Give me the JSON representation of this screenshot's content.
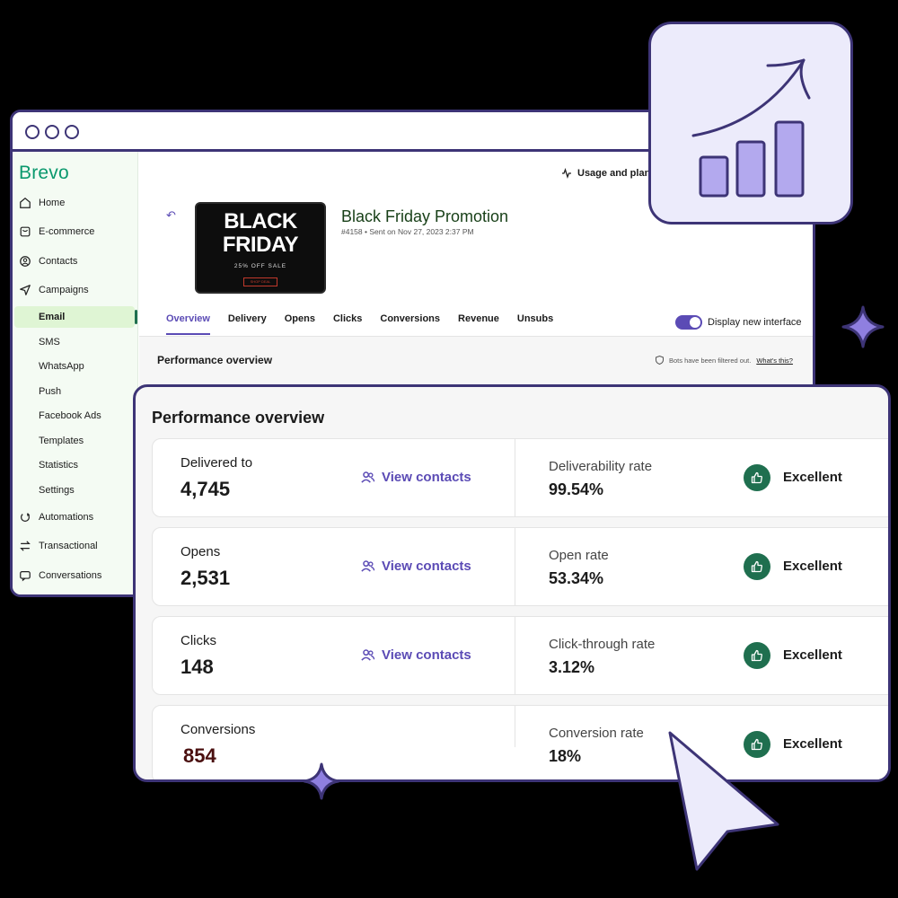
{
  "window": {
    "brand": "Brevo",
    "usage_label": "Usage and plan"
  },
  "sidebar": {
    "items": [
      {
        "label": "Home",
        "icon": "home-icon"
      },
      {
        "label": "E-commerce",
        "icon": "bag-icon"
      },
      {
        "label": "Contacts",
        "icon": "contact-icon"
      },
      {
        "label": "Campaigns",
        "icon": "send-icon"
      }
    ],
    "campaign_sub": [
      {
        "label": "Email",
        "active": true
      },
      {
        "label": "SMS"
      },
      {
        "label": "WhatsApp"
      },
      {
        "label": "Push"
      },
      {
        "label": "Facebook Ads"
      },
      {
        "label": "Templates"
      },
      {
        "label": "Statistics"
      },
      {
        "label": "Settings"
      }
    ],
    "bottom_items": [
      {
        "label": "Automations",
        "icon": "automation-icon"
      },
      {
        "label": "Transactional",
        "icon": "swap-icon"
      },
      {
        "label": "Conversations",
        "icon": "chat-icon"
      }
    ]
  },
  "campaign": {
    "title": "Black Friday Promotion",
    "meta": "#4158 • Sent on Nov 27, 2023 2:37 PM",
    "image": {
      "line1": "BLACK",
      "line2": "FRIDAY",
      "line3": "25% OFF SALE",
      "button": "SHOP DEAL"
    }
  },
  "tabs": [
    "Overview",
    "Delivery",
    "Opens",
    "Clicks",
    "Conversions",
    "Revenue",
    "Unsubs"
  ],
  "active_tab": "Overview",
  "toggle_label": "Display new interface",
  "perf_small_title": "Performance overview",
  "bots_note": "Bots have been filtered out.",
  "bots_link": "What's this?",
  "card": {
    "title": "Performance overview",
    "rows": [
      {
        "label": "Delivered to",
        "value": "4,745",
        "link": "View contacts",
        "rate_label": "Deliverability rate",
        "rate_value": "99.54%",
        "status": "Excellent"
      },
      {
        "label": "Opens",
        "value": "2,531",
        "link": "View contacts",
        "rate_label": "Open rate",
        "rate_value": "53.34%",
        "status": "Excellent"
      },
      {
        "label": "Clicks",
        "value": "148",
        "link": "View contacts",
        "rate_label": "Click-through rate",
        "rate_value": "3.12%",
        "status": "Excellent"
      },
      {
        "label": "Conversions",
        "value": "854",
        "link": "",
        "rate_label": "Conversion rate",
        "rate_value": "18%",
        "status": "Excellent"
      }
    ]
  },
  "colors": {
    "accent": "#5b4bb5",
    "outline": "#3d3476",
    "success": "#1f6f4f",
    "brand": "#0b996e"
  }
}
